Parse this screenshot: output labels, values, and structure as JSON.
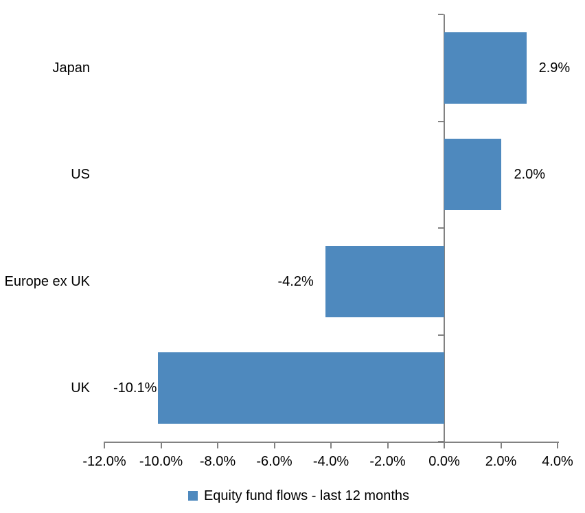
{
  "page": {
    "background": "#FFFFFF"
  },
  "chart_data": {
    "type": "bar",
    "orientation": "horizontal",
    "title": "",
    "categories": [
      "Japan",
      "US",
      "Europe ex UK",
      "UK"
    ],
    "series": [
      {
        "name": "Equity fund flows - last 12 months",
        "values": [
          2.9,
          2.0,
          -4.2,
          -10.1
        ],
        "value_labels": [
          "2.9%",
          "2.0%",
          "-4.2%",
          "-10.1%"
        ],
        "color": "#4E89BE"
      }
    ],
    "xlim": [
      -12,
      4
    ],
    "x_ticks": [
      -12,
      -10,
      -8,
      -6,
      -4,
      -2,
      0,
      2,
      4
    ],
    "x_tick_labels": [
      "-12.0%",
      "-10.0%",
      "-8.0%",
      "-6.0%",
      "-4.0%",
      "-2.0%",
      "0.0%",
      "2.0%",
      "4.0%"
    ],
    "grid": false,
    "legend_position": "bottom-center",
    "legend": {
      "label": "Equity fund flows - last 12 months",
      "swatch_color": "#4E89BE"
    },
    "axis_color": "#828282",
    "text_color": "#000000",
    "background": "#FFFFFF"
  }
}
